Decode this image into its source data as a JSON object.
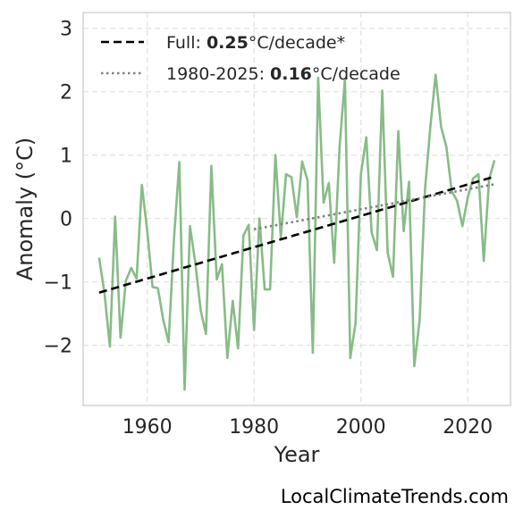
{
  "chart_data": {
    "type": "line",
    "xlabel": "Year",
    "ylabel": "Anomaly (°C)",
    "xlim": [
      1948,
      2028
    ],
    "ylim": [
      -2.95,
      3.25
    ],
    "xticks": [
      1960,
      1980,
      2000,
      2020
    ],
    "yticks": [
      -2,
      -1,
      0,
      1,
      2,
      3
    ],
    "ytick_labels": [
      "−2",
      "−1",
      "0",
      "1",
      "2",
      "3"
    ],
    "grid": true,
    "legend_position": "top-left",
    "colors": {
      "series": "#88bb88",
      "full_trend": "#000000",
      "recent_trend": "#808080"
    },
    "series": [
      {
        "x": [
          1951,
          1952,
          1953,
          1954,
          1955,
          1956,
          1957,
          1958,
          1959,
          1960,
          1961,
          1962,
          1963,
          1964,
          1965,
          1966,
          1967,
          1968,
          1969,
          1970,
          1971,
          1972,
          1973,
          1974,
          1975,
          1976,
          1977,
          1978,
          1979,
          1980,
          1981,
          1982,
          1983,
          1984,
          1985,
          1986,
          1987,
          1988,
          1989,
          1990,
          1991,
          1992,
          1993,
          1994,
          1995,
          1996,
          1997,
          1998,
          1999,
          2000,
          2001,
          2002,
          2003,
          2004,
          2005,
          2006,
          2007,
          2008,
          2009,
          2010,
          2011,
          2012,
          2013,
          2014,
          2015,
          2016,
          2017,
          2018,
          2019,
          2020,
          2021,
          2022,
          2023,
          2024,
          2025
        ],
        "values": [
          -0.62,
          -1.18,
          -2.02,
          0.03,
          -1.88,
          -0.98,
          -0.78,
          -0.95,
          0.53,
          -0.2,
          -1.08,
          -1.1,
          -1.6,
          -1.95,
          -0.32,
          0.89,
          -2.7,
          -0.12,
          -0.7,
          -1.45,
          -1.82,
          0.83,
          -0.96,
          -0.72,
          -2.2,
          -1.3,
          -2.05,
          -0.27,
          -0.1,
          -1.76,
          0.0,
          -1.12,
          -1.12,
          1.0,
          -0.3,
          0.7,
          0.65,
          0.02,
          0.9,
          0.6,
          -2.12,
          2.22,
          0.25,
          0.56,
          -0.7,
          1.12,
          2.2,
          -2.2,
          -1.65,
          0.7,
          1.28,
          -0.22,
          -0.5,
          2.02,
          -0.54,
          -0.92,
          1.38,
          -0.2,
          0.58,
          -2.33,
          -1.6,
          0.46,
          1.45,
          2.27,
          1.45,
          1.13,
          0.43,
          0.28,
          -0.12,
          0.33,
          0.63,
          0.7,
          -0.67,
          0.62,
          0.92
        ]
      }
    ],
    "trends": [
      {
        "style": "dashed",
        "x": [
          1951,
          2025
        ],
        "values": [
          -1.17,
          0.66
        ]
      },
      {
        "style": "dotted",
        "x": [
          1980,
          2025
        ],
        "values": [
          -0.17,
          0.54
        ]
      }
    ],
    "legend": [
      {
        "prefix": "Full: ",
        "bold": "0.25",
        "suffix": "°C/decade*"
      },
      {
        "prefix": "1980-2025: ",
        "bold": "0.16",
        "suffix": "°C/decade"
      }
    ]
  },
  "watermark": "LocalClimateTrends.com"
}
